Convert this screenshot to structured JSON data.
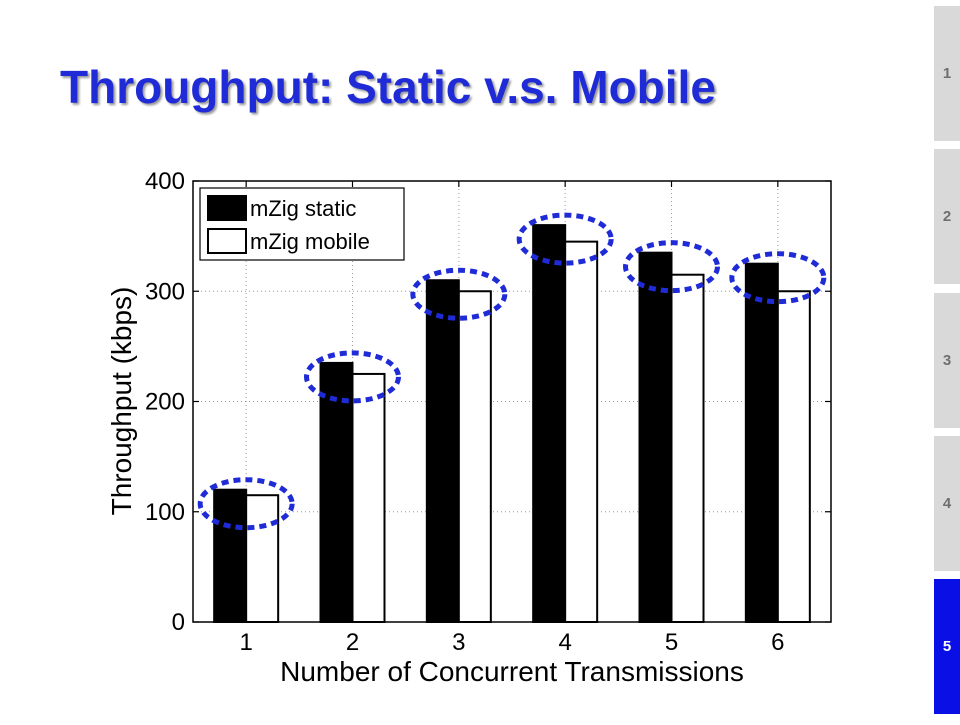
{
  "slide": {
    "title": "Throughput: Static v.s. Mobile"
  },
  "nav": {
    "items": [
      {
        "label": "1",
        "active": false
      },
      {
        "label": "2",
        "active": false
      },
      {
        "label": "3",
        "active": false
      },
      {
        "label": "4",
        "active": false
      },
      {
        "label": "5",
        "active": true
      }
    ],
    "active_color": "#0a0fe6",
    "inactive_color": "#d9d9d9"
  },
  "chart_data": {
    "type": "bar",
    "categories": [
      "1",
      "2",
      "3",
      "4",
      "5",
      "6"
    ],
    "series": [
      {
        "name": "mZig static",
        "values": [
          120,
          235,
          310,
          360,
          335,
          325
        ],
        "fill": "#000000"
      },
      {
        "name": "mZig mobile",
        "values": [
          115,
          225,
          300,
          345,
          315,
          300
        ],
        "fill": "#ffffff"
      }
    ],
    "xlabel": "Number of Concurrent Transmissions",
    "ylabel": "Throughput (kbps)",
    "ylim": [
      0,
      400
    ],
    "yticks": [
      0,
      100,
      200,
      300,
      400
    ],
    "grid": true,
    "legend": "top-left",
    "highlight_color": "#1f2bd6"
  }
}
